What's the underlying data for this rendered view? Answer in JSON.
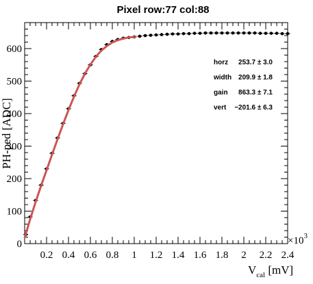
{
  "chart_data": {
    "type": "scatter",
    "title": "Pixel row:77 col:88",
    "xlabel": "V",
    "xlabel_sub": "cal",
    "xlabel_unit": " [mV]",
    "ylabel": "PH-ped [ADC]",
    "x_multiplier": "×10",
    "x_multiplier_exp": "3",
    "xlim": [
      0,
      2.4
    ],
    "ylim": [
      0,
      680
    ],
    "x_ticks": [
      "0.2",
      "0.4",
      "0.6",
      "0.8",
      "1",
      "1.2",
      "1.4",
      "1.6",
      "1.8",
      "2",
      "2.2",
      "2.4"
    ],
    "y_ticks": [
      "0",
      "100",
      "200",
      "300",
      "400",
      "500",
      "600"
    ],
    "x_tick_values": [
      0.2,
      0.4,
      0.6,
      0.8,
      1.0,
      1.2,
      1.4,
      1.6,
      1.8,
      2.0,
      2.2,
      2.4
    ],
    "y_tick_values": [
      0,
      100,
      200,
      300,
      400,
      500,
      600
    ],
    "fit_color": "#cc5555",
    "marker_color": "#000000",
    "series": [
      {
        "points": [
          [
            0.01,
            28
          ],
          [
            0.05,
            82
          ],
          [
            0.1,
            133
          ],
          [
            0.15,
            180
          ],
          [
            0.2,
            230
          ],
          [
            0.25,
            278
          ],
          [
            0.3,
            325
          ],
          [
            0.35,
            370
          ],
          [
            0.4,
            415
          ],
          [
            0.45,
            455
          ],
          [
            0.5,
            493
          ],
          [
            0.55,
            523
          ],
          [
            0.6,
            550
          ],
          [
            0.65,
            576
          ],
          [
            0.7,
            597
          ],
          [
            0.75,
            612
          ],
          [
            0.8,
            622
          ],
          [
            0.85,
            628
          ],
          [
            0.9,
            632
          ],
          [
            0.95,
            634
          ],
          [
            1.0,
            636
          ],
          [
            1.05,
            638
          ],
          [
            1.1,
            640
          ],
          [
            1.15,
            641
          ],
          [
            1.2,
            642
          ],
          [
            1.25,
            643
          ],
          [
            1.3,
            644
          ],
          [
            1.35,
            645
          ],
          [
            1.4,
            645
          ],
          [
            1.45,
            646
          ],
          [
            1.5,
            646
          ],
          [
            1.55,
            647
          ],
          [
            1.6,
            647
          ],
          [
            1.65,
            648
          ],
          [
            1.7,
            648
          ],
          [
            1.75,
            648
          ],
          [
            1.8,
            648
          ],
          [
            1.85,
            648
          ],
          [
            1.9,
            648
          ],
          [
            1.95,
            648
          ],
          [
            2.0,
            648
          ],
          [
            2.05,
            648
          ],
          [
            2.1,
            648
          ],
          [
            2.15,
            647
          ],
          [
            2.2,
            647
          ],
          [
            2.25,
            647
          ],
          [
            2.3,
            647
          ],
          [
            2.35,
            646
          ],
          [
            2.4,
            646
          ]
        ]
      }
    ],
    "fit_curve": [
      [
        0.0,
        18
      ],
      [
        0.05,
        75
      ],
      [
        0.1,
        128
      ],
      [
        0.15,
        178
      ],
      [
        0.2,
        226
      ],
      [
        0.25,
        274
      ],
      [
        0.3,
        321
      ],
      [
        0.35,
        367
      ],
      [
        0.4,
        411
      ],
      [
        0.45,
        452
      ],
      [
        0.5,
        490
      ],
      [
        0.55,
        523
      ],
      [
        0.6,
        551
      ],
      [
        0.65,
        575
      ],
      [
        0.7,
        594
      ],
      [
        0.75,
        608
      ],
      [
        0.8,
        619
      ],
      [
        0.85,
        626
      ],
      [
        0.9,
        631
      ],
      [
        0.95,
        634
      ],
      [
        1.0,
        636
      ],
      [
        1.02,
        637
      ]
    ],
    "fit_params": [
      {
        "key": "horz",
        "value": "253.7 ± 3.0"
      },
      {
        "key": "width",
        "value": "209.9 ± 1.8"
      },
      {
        "key": "gain",
        "value": "863.3 ± 7.1"
      },
      {
        "key": "vert",
        "value": "−201.6 ± 6.3"
      }
    ]
  }
}
